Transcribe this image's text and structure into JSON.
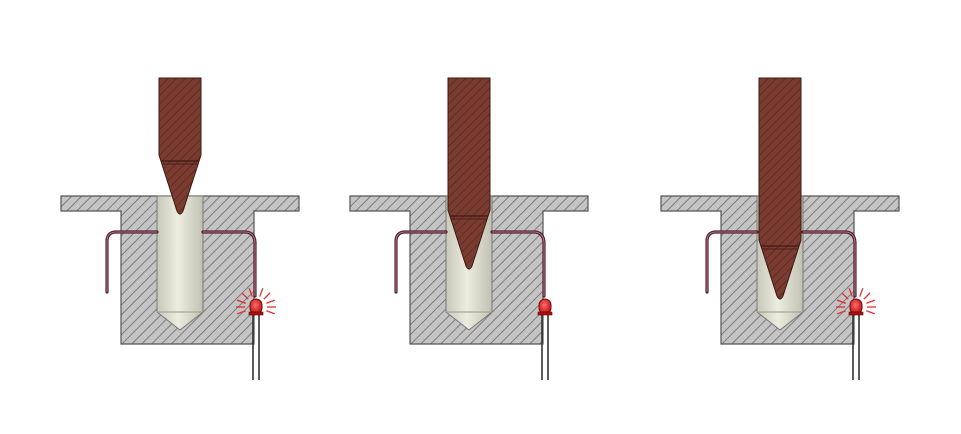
{
  "panels": [
    {
      "id": "panel-1",
      "probe_depth": "tip-in-bore-top",
      "led": {
        "lit": true
      }
    },
    {
      "id": "panel-2",
      "probe_depth": "tip-mid-bore",
      "led": {
        "lit": false
      }
    },
    {
      "id": "panel-3",
      "probe_depth": "tip-deep-bore",
      "led": {
        "lit": true
      }
    }
  ],
  "colors": {
    "probe": "#7a3b30",
    "probe_hatch": "#5a2a22",
    "block": "#bdbdbd",
    "block_hatch": "#6e6e6e",
    "bore": "#dcdccf",
    "wire": "#5a2230",
    "led": "#d42020",
    "led_glow": "#e23030",
    "lead": "#333333"
  }
}
